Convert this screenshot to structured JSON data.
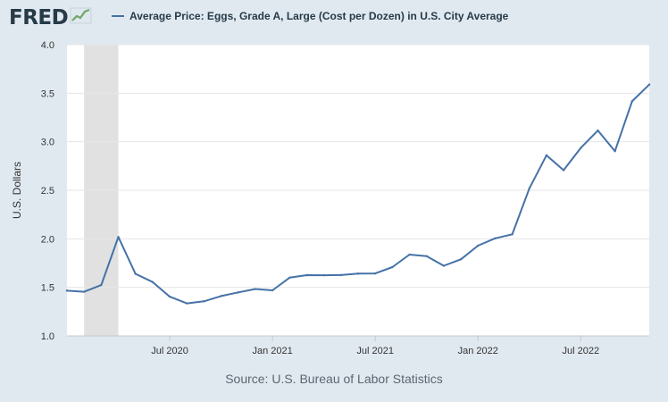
{
  "header": {
    "logo_text": "FRED",
    "logo_icon": "line-chart-icon"
  },
  "source_text": "Source: U.S. Bureau of Labor Statistics",
  "chart_data": {
    "type": "line",
    "title": "",
    "xlabel": "",
    "ylabel": "U.S. Dollars",
    "ylim": [
      1.0,
      4.0
    ],
    "yticks": [
      "1.0",
      "1.5",
      "2.0",
      "2.5",
      "3.0",
      "3.5",
      "4.0"
    ],
    "xticks": [
      {
        "label": "Jul 2020",
        "x": "2020-07"
      },
      {
        "label": "Jan 2021",
        "x": "2021-01"
      },
      {
        "label": "Jul 2021",
        "x": "2021-07"
      },
      {
        "label": "Jan 2022",
        "x": "2022-01"
      },
      {
        "label": "Jul 2022",
        "x": "2022-07"
      }
    ],
    "grid": true,
    "legend_position": "top-left",
    "recession_shading": [
      "2020-02",
      "2020-04"
    ],
    "series": [
      {
        "name": "Average Price: Eggs, Grade A, Large (Cost per Dozen) in U.S. City Average",
        "color": "#4572a7",
        "x": [
          "2020-01",
          "2020-02",
          "2020-03",
          "2020-04",
          "2020-05",
          "2020-06",
          "2020-07",
          "2020-08",
          "2020-09",
          "2020-10",
          "2020-11",
          "2020-12",
          "2021-01",
          "2021-02",
          "2021-03",
          "2021-04",
          "2021-05",
          "2021-06",
          "2021-07",
          "2021-08",
          "2021-09",
          "2021-10",
          "2021-11",
          "2021-12",
          "2022-01",
          "2022-02",
          "2022-03",
          "2022-04",
          "2022-05",
          "2022-06",
          "2022-07",
          "2022-08",
          "2022-09",
          "2022-10",
          "2022-11"
        ],
        "values": [
          1.466,
          1.455,
          1.524,
          2.019,
          1.64,
          1.555,
          1.404,
          1.335,
          1.356,
          1.41,
          1.448,
          1.483,
          1.469,
          1.6,
          1.626,
          1.625,
          1.627,
          1.641,
          1.643,
          1.709,
          1.837,
          1.822,
          1.722,
          1.789,
          1.929,
          2.005,
          2.046,
          2.52,
          2.86,
          2.707,
          2.936,
          3.116,
          2.903,
          3.417,
          3.589
        ]
      }
    ]
  }
}
